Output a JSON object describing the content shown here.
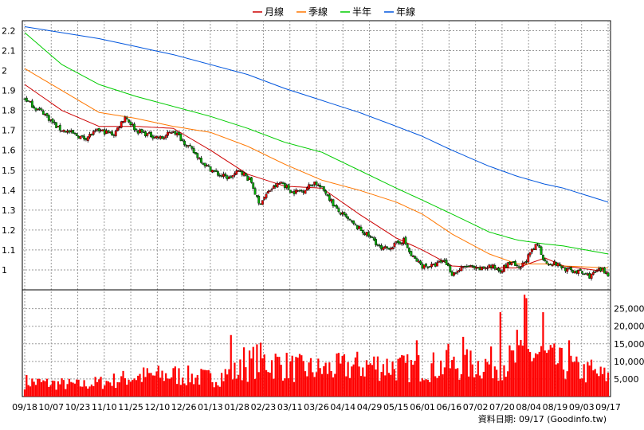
{
  "chart_data": {
    "type": "candlestick",
    "title": "",
    "legend": {
      "placement": "top-center",
      "items": [
        {
          "label": "月線",
          "color": "#cc0000"
        },
        {
          "label": "季線",
          "color": "#ff7700"
        },
        {
          "label": "半年",
          "color": "#00cc00"
        },
        {
          "label": "年線",
          "color": "#0055dd"
        }
      ]
    },
    "price_axis": {
      "ticks": [
        "1",
        "1.1",
        "1.2",
        "1.3",
        "1.4",
        "1.5",
        "1.6",
        "1.7",
        "1.8",
        "1.9",
        "2",
        "2.1",
        "2.2"
      ],
      "ylim": [
        0.9,
        2.25
      ],
      "position": "left"
    },
    "volume_axis": {
      "ticks": [
        "5,000",
        "10,000",
        "15,000",
        "20,000",
        "25,000"
      ],
      "ylim": [
        0,
        29000
      ],
      "position": "right"
    },
    "x_ticks": [
      "09/18",
      "10/07",
      "10/23",
      "11/10",
      "11/25",
      "12/10",
      "12/26",
      "01/13",
      "01/28",
      "02/23",
      "03/11",
      "03/26",
      "04/14",
      "04/29",
      "05/15",
      "06/01",
      "06/16",
      "07/02",
      "07/20",
      "08/04",
      "08/19",
      "09/03",
      "09/17"
    ],
    "grid": true,
    "up_color": "#ee0000",
    "down_color": "#00aa00",
    "volume_color": "#ff0000",
    "close_path": [
      [
        0,
        1.86
      ],
      [
        6,
        1.81
      ],
      [
        10,
        1.79
      ],
      [
        18,
        1.71
      ],
      [
        24,
        1.69
      ],
      [
        32,
        1.66
      ],
      [
        40,
        1.7
      ],
      [
        48,
        1.68
      ],
      [
        54,
        1.77
      ],
      [
        60,
        1.7
      ],
      [
        66,
        1.68
      ],
      [
        74,
        1.66
      ],
      [
        80,
        1.7
      ],
      [
        90,
        1.6
      ],
      [
        98,
        1.52
      ],
      [
        104,
        1.48
      ],
      [
        110,
        1.46
      ],
      [
        116,
        1.5
      ],
      [
        122,
        1.44
      ],
      [
        126,
        1.33
      ],
      [
        132,
        1.4
      ],
      [
        138,
        1.44
      ],
      [
        144,
        1.39
      ],
      [
        150,
        1.4
      ],
      [
        156,
        1.44
      ],
      [
        162,
        1.39
      ],
      [
        168,
        1.3
      ],
      [
        178,
        1.22
      ],
      [
        188,
        1.15
      ],
      [
        192,
        1.1
      ],
      [
        198,
        1.12
      ],
      [
        204,
        1.15
      ],
      [
        208,
        1.07
      ],
      [
        214,
        1.02
      ],
      [
        220,
        1.02
      ],
      [
        226,
        1.05
      ],
      [
        230,
        0.98
      ],
      [
        238,
        1.02
      ],
      [
        244,
        1.0
      ],
      [
        250,
        1.02
      ],
      [
        256,
        1.0
      ],
      [
        262,
        1.04
      ],
      [
        266,
        1.0
      ],
      [
        272,
        1.08
      ],
      [
        276,
        1.13
      ],
      [
        280,
        1.04
      ],
      [
        286,
        1.03
      ],
      [
        292,
        1.0
      ],
      [
        298,
        0.99
      ],
      [
        304,
        0.97
      ],
      [
        310,
        1.0
      ],
      [
        314,
        0.98
      ]
    ],
    "series": [
      {
        "name": "月線",
        "color": "#cc0000",
        "points": [
          [
            0,
            1.93
          ],
          [
            20,
            1.8
          ],
          [
            40,
            1.72
          ],
          [
            60,
            1.72
          ],
          [
            80,
            1.71
          ],
          [
            100,
            1.6
          ],
          [
            120,
            1.48
          ],
          [
            140,
            1.42
          ],
          [
            160,
            1.41
          ],
          [
            180,
            1.28
          ],
          [
            200,
            1.16
          ],
          [
            214,
            1.1
          ],
          [
            230,
            1.02
          ],
          [
            250,
            1.01
          ],
          [
            265,
            1.01
          ],
          [
            280,
            1.06
          ],
          [
            290,
            1.02
          ],
          [
            314,
            0.99
          ]
        ]
      },
      {
        "name": "季線",
        "color": "#ff7700",
        "points": [
          [
            0,
            2.01
          ],
          [
            20,
            1.9
          ],
          [
            40,
            1.79
          ],
          [
            60,
            1.76
          ],
          [
            80,
            1.72
          ],
          [
            100,
            1.69
          ],
          [
            120,
            1.62
          ],
          [
            140,
            1.53
          ],
          [
            160,
            1.45
          ],
          [
            180,
            1.4
          ],
          [
            200,
            1.34
          ],
          [
            214,
            1.28
          ],
          [
            230,
            1.18
          ],
          [
            250,
            1.08
          ],
          [
            265,
            1.03
          ],
          [
            280,
            1.03
          ],
          [
            290,
            1.02
          ],
          [
            314,
            1.01
          ]
        ]
      },
      {
        "name": "半年",
        "color": "#00cc00",
        "points": [
          [
            0,
            2.19
          ],
          [
            20,
            2.03
          ],
          [
            40,
            1.93
          ],
          [
            60,
            1.87
          ],
          [
            80,
            1.82
          ],
          [
            100,
            1.77
          ],
          [
            120,
            1.71
          ],
          [
            140,
            1.64
          ],
          [
            160,
            1.59
          ],
          [
            180,
            1.5
          ],
          [
            200,
            1.41
          ],
          [
            214,
            1.35
          ],
          [
            230,
            1.28
          ],
          [
            250,
            1.19
          ],
          [
            265,
            1.15
          ],
          [
            280,
            1.13
          ],
          [
            290,
            1.12
          ],
          [
            314,
            1.08
          ]
        ]
      },
      {
        "name": "年線",
        "color": "#0055dd",
        "points": [
          [
            0,
            2.22
          ],
          [
            20,
            2.19
          ],
          [
            40,
            2.16
          ],
          [
            60,
            2.12
          ],
          [
            80,
            2.08
          ],
          [
            100,
            2.03
          ],
          [
            120,
            1.98
          ],
          [
            140,
            1.91
          ],
          [
            160,
            1.85
          ],
          [
            180,
            1.79
          ],
          [
            200,
            1.72
          ],
          [
            214,
            1.67
          ],
          [
            230,
            1.6
          ],
          [
            250,
            1.52
          ],
          [
            265,
            1.47
          ],
          [
            280,
            1.43
          ],
          [
            290,
            1.41
          ],
          [
            314,
            1.34
          ]
        ]
      }
    ],
    "volume_profile": [
      [
        0,
        4500
      ],
      [
        12,
        4000
      ],
      [
        30,
        3500
      ],
      [
        45,
        4500
      ],
      [
        60,
        6000
      ],
      [
        80,
        6500
      ],
      [
        100,
        5500
      ],
      [
        115,
        7500
      ],
      [
        125,
        11000
      ],
      [
        135,
        10000
      ],
      [
        145,
        8500
      ],
      [
        160,
        8000
      ],
      [
        175,
        9000
      ],
      [
        190,
        9500
      ],
      [
        205,
        8500
      ],
      [
        220,
        9000
      ],
      [
        240,
        9500
      ],
      [
        255,
        10000
      ],
      [
        265,
        11000
      ],
      [
        275,
        13000
      ],
      [
        285,
        10500
      ],
      [
        300,
        7500
      ],
      [
        314,
        6000
      ]
    ],
    "volume_highlights": [
      [
        111,
        17500
      ],
      [
        118,
        14000
      ],
      [
        211,
        16000
      ],
      [
        228,
        15000
      ],
      [
        236,
        17000
      ],
      [
        256,
        24000
      ],
      [
        265,
        19000
      ],
      [
        269,
        29000
      ],
      [
        270,
        28000
      ],
      [
        279,
        24000
      ],
      [
        293,
        16000
      ],
      [
        305,
        10500
      ]
    ],
    "source_note": "資料日期: 09/17  (Goodinfo.tw)"
  }
}
